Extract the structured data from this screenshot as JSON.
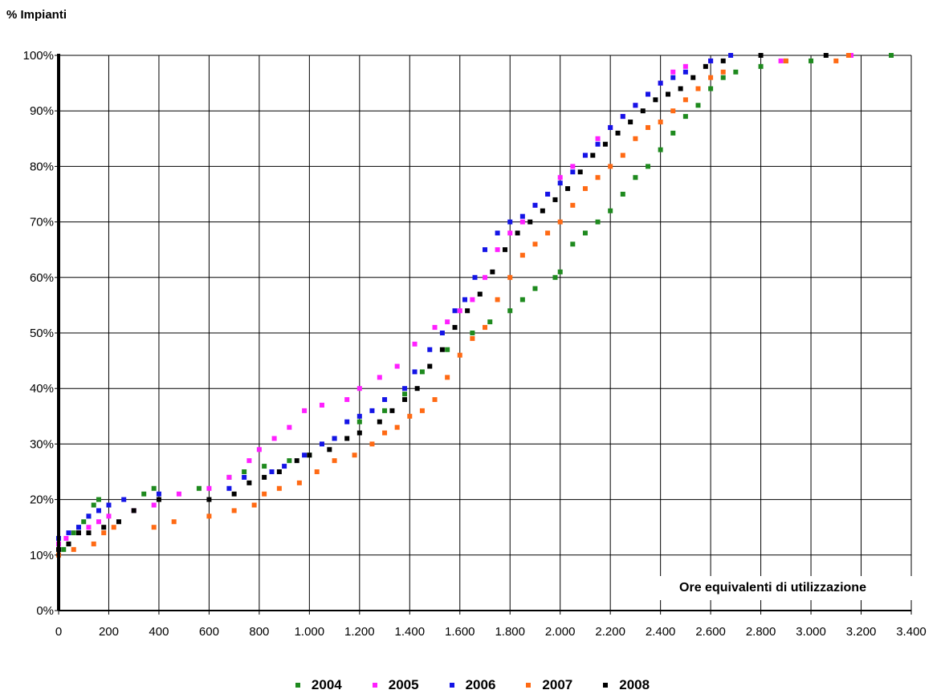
{
  "chart_data": {
    "type": "scatter",
    "ylabel": "% Impianti",
    "xlabel": "Ore equivalenti di utilizzazione",
    "xlim": [
      0,
      3400
    ],
    "ylim": [
      0,
      100
    ],
    "x_ticks": [
      "0",
      "200",
      "400",
      "600",
      "800",
      "1.000",
      "1.200",
      "1.400",
      "1.600",
      "1.800",
      "2.000",
      "2.200",
      "2.400",
      "2.600",
      "2.800",
      "3.000",
      "3.200",
      "3.400"
    ],
    "y_ticks": [
      "0%",
      "10%",
      "20%",
      "30%",
      "40%",
      "50%",
      "60%",
      "70%",
      "80%",
      "90%",
      "100%"
    ],
    "grid": true,
    "legend_position": "bottom",
    "series": [
      {
        "name": "2004",
        "color": "#1e8a1e",
        "points": [
          [
            0,
            10
          ],
          [
            20,
            11
          ],
          [
            40,
            12
          ],
          [
            60,
            14
          ],
          [
            80,
            15
          ],
          [
            100,
            16
          ],
          [
            120,
            17
          ],
          [
            140,
            19
          ],
          [
            160,
            20
          ],
          [
            340,
            21
          ],
          [
            380,
            22
          ],
          [
            560,
            22
          ],
          [
            680,
            24
          ],
          [
            740,
            25
          ],
          [
            820,
            26
          ],
          [
            920,
            27
          ],
          [
            1000,
            28
          ],
          [
            1100,
            31
          ],
          [
            1200,
            34
          ],
          [
            1300,
            36
          ],
          [
            1380,
            39
          ],
          [
            1450,
            43
          ],
          [
            1550,
            47
          ],
          [
            1650,
            50
          ],
          [
            1720,
            52
          ],
          [
            1800,
            54
          ],
          [
            1850,
            56
          ],
          [
            1900,
            58
          ],
          [
            1980,
            60
          ],
          [
            2000,
            61
          ],
          [
            2050,
            66
          ],
          [
            2100,
            68
          ],
          [
            2150,
            70
          ],
          [
            2200,
            72
          ],
          [
            2250,
            75
          ],
          [
            2300,
            78
          ],
          [
            2350,
            80
          ],
          [
            2400,
            83
          ],
          [
            2450,
            86
          ],
          [
            2500,
            89
          ],
          [
            2550,
            91
          ],
          [
            2600,
            94
          ],
          [
            2650,
            96
          ],
          [
            2700,
            97
          ],
          [
            2800,
            98
          ],
          [
            2900,
            99
          ],
          [
            3000,
            99
          ],
          [
            3320,
            100
          ]
        ]
      },
      {
        "name": "2005",
        "color": "#ff1fff",
        "points": [
          [
            0,
            12
          ],
          [
            30,
            13
          ],
          [
            80,
            14
          ],
          [
            120,
            15
          ],
          [
            160,
            16
          ],
          [
            200,
            17
          ],
          [
            300,
            18
          ],
          [
            380,
            19
          ],
          [
            480,
            21
          ],
          [
            600,
            22
          ],
          [
            680,
            24
          ],
          [
            760,
            27
          ],
          [
            800,
            29
          ],
          [
            860,
            31
          ],
          [
            920,
            33
          ],
          [
            980,
            36
          ],
          [
            1050,
            37
          ],
          [
            1150,
            38
          ],
          [
            1200,
            40
          ],
          [
            1280,
            42
          ],
          [
            1350,
            44
          ],
          [
            1420,
            48
          ],
          [
            1500,
            51
          ],
          [
            1550,
            52
          ],
          [
            1600,
            54
          ],
          [
            1650,
            56
          ],
          [
            1700,
            60
          ],
          [
            1750,
            65
          ],
          [
            1800,
            68
          ],
          [
            1850,
            70
          ],
          [
            1900,
            73
          ],
          [
            1950,
            75
          ],
          [
            2000,
            78
          ],
          [
            2050,
            80
          ],
          [
            2100,
            82
          ],
          [
            2150,
            85
          ],
          [
            2200,
            87
          ],
          [
            2250,
            89
          ],
          [
            2300,
            91
          ],
          [
            2350,
            93
          ],
          [
            2400,
            95
          ],
          [
            2450,
            97
          ],
          [
            2500,
            98
          ],
          [
            2600,
            99
          ],
          [
            2880,
            99
          ],
          [
            3160,
            100
          ]
        ]
      },
      {
        "name": "2006",
        "color": "#1414e6",
        "points": [
          [
            0,
            13
          ],
          [
            40,
            14
          ],
          [
            80,
            15
          ],
          [
            120,
            17
          ],
          [
            160,
            18
          ],
          [
            200,
            19
          ],
          [
            260,
            20
          ],
          [
            400,
            21
          ],
          [
            680,
            22
          ],
          [
            740,
            24
          ],
          [
            850,
            25
          ],
          [
            900,
            26
          ],
          [
            980,
            28
          ],
          [
            1050,
            30
          ],
          [
            1100,
            31
          ],
          [
            1150,
            34
          ],
          [
            1200,
            35
          ],
          [
            1250,
            36
          ],
          [
            1300,
            38
          ],
          [
            1380,
            40
          ],
          [
            1420,
            43
          ],
          [
            1480,
            47
          ],
          [
            1530,
            50
          ],
          [
            1580,
            54
          ],
          [
            1620,
            56
          ],
          [
            1660,
            60
          ],
          [
            1700,
            65
          ],
          [
            1750,
            68
          ],
          [
            1800,
            70
          ],
          [
            1850,
            71
          ],
          [
            1900,
            73
          ],
          [
            1950,
            75
          ],
          [
            2000,
            77
          ],
          [
            2050,
            79
          ],
          [
            2100,
            82
          ],
          [
            2150,
            84
          ],
          [
            2200,
            87
          ],
          [
            2250,
            89
          ],
          [
            2300,
            91
          ],
          [
            2350,
            93
          ],
          [
            2400,
            95
          ],
          [
            2450,
            96
          ],
          [
            2500,
            97
          ],
          [
            2600,
            99
          ],
          [
            2680,
            100
          ]
        ]
      },
      {
        "name": "2007",
        "color": "#ff6a14",
        "points": [
          [
            0,
            10
          ],
          [
            60,
            11
          ],
          [
            140,
            12
          ],
          [
            180,
            14
          ],
          [
            220,
            15
          ],
          [
            380,
            15
          ],
          [
            460,
            16
          ],
          [
            600,
            17
          ],
          [
            700,
            18
          ],
          [
            780,
            19
          ],
          [
            820,
            21
          ],
          [
            880,
            22
          ],
          [
            960,
            23
          ],
          [
            1030,
            25
          ],
          [
            1100,
            27
          ],
          [
            1180,
            28
          ],
          [
            1250,
            30
          ],
          [
            1300,
            32
          ],
          [
            1350,
            33
          ],
          [
            1400,
            35
          ],
          [
            1450,
            36
          ],
          [
            1500,
            38
          ],
          [
            1550,
            42
          ],
          [
            1600,
            46
          ],
          [
            1650,
            49
          ],
          [
            1700,
            51
          ],
          [
            1750,
            56
          ],
          [
            1800,
            60
          ],
          [
            1850,
            64
          ],
          [
            1900,
            66
          ],
          [
            1950,
            68
          ],
          [
            2000,
            70
          ],
          [
            2050,
            73
          ],
          [
            2100,
            76
          ],
          [
            2150,
            78
          ],
          [
            2200,
            80
          ],
          [
            2250,
            82
          ],
          [
            2300,
            85
          ],
          [
            2350,
            87
          ],
          [
            2400,
            88
          ],
          [
            2450,
            90
          ],
          [
            2500,
            92
          ],
          [
            2550,
            94
          ],
          [
            2600,
            96
          ],
          [
            2650,
            97
          ],
          [
            2900,
            99
          ],
          [
            3100,
            99
          ],
          [
            3150,
            100
          ]
        ]
      },
      {
        "name": "2008",
        "color": "#000000",
        "points": [
          [
            0,
            11
          ],
          [
            40,
            12
          ],
          [
            80,
            14
          ],
          [
            120,
            14
          ],
          [
            180,
            15
          ],
          [
            240,
            16
          ],
          [
            300,
            18
          ],
          [
            400,
            20
          ],
          [
            600,
            20
          ],
          [
            700,
            21
          ],
          [
            760,
            23
          ],
          [
            820,
            24
          ],
          [
            880,
            25
          ],
          [
            950,
            27
          ],
          [
            1000,
            28
          ],
          [
            1080,
            29
          ],
          [
            1150,
            31
          ],
          [
            1200,
            32
          ],
          [
            1280,
            34
          ],
          [
            1330,
            36
          ],
          [
            1380,
            38
          ],
          [
            1430,
            40
          ],
          [
            1480,
            44
          ],
          [
            1530,
            47
          ],
          [
            1580,
            51
          ],
          [
            1630,
            54
          ],
          [
            1680,
            57
          ],
          [
            1730,
            61
          ],
          [
            1780,
            65
          ],
          [
            1830,
            68
          ],
          [
            1880,
            70
          ],
          [
            1930,
            72
          ],
          [
            1980,
            74
          ],
          [
            2030,
            76
          ],
          [
            2080,
            79
          ],
          [
            2130,
            82
          ],
          [
            2180,
            84
          ],
          [
            2230,
            86
          ],
          [
            2280,
            88
          ],
          [
            2330,
            90
          ],
          [
            2380,
            92
          ],
          [
            2430,
            93
          ],
          [
            2480,
            94
          ],
          [
            2530,
            96
          ],
          [
            2580,
            98
          ],
          [
            2650,
            99
          ],
          [
            2800,
            100
          ],
          [
            3060,
            100
          ]
        ]
      }
    ]
  }
}
